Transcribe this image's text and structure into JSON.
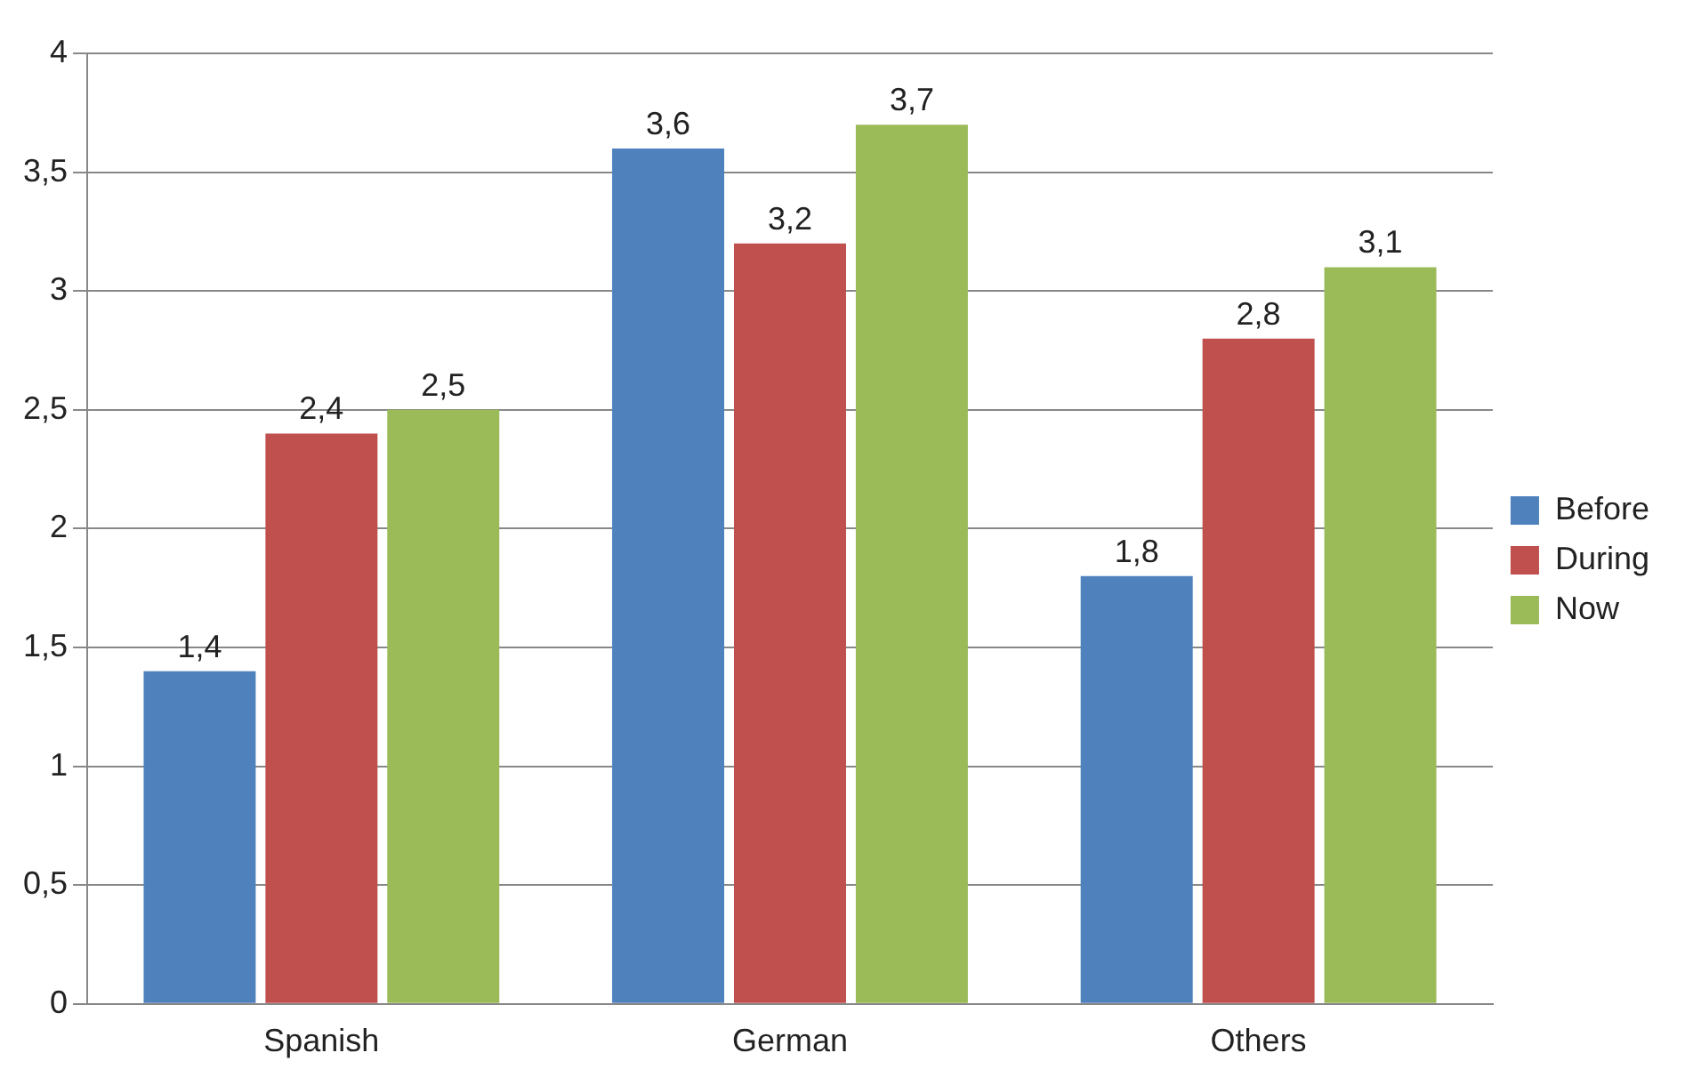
{
  "chart_data": {
    "type": "bar",
    "categories": [
      "Spanish",
      "German",
      "Others"
    ],
    "series": [
      {
        "name": "Before",
        "color": "#4f81bd",
        "values": [
          1.4,
          3.6,
          1.8
        ],
        "value_labels": [
          "1,4",
          "3,6",
          "1,8"
        ]
      },
      {
        "name": "During",
        "color": "#c0504d",
        "values": [
          2.4,
          3.2,
          2.8
        ],
        "value_labels": [
          "2,4",
          "3,2",
          "2,8"
        ]
      },
      {
        "name": "Now",
        "color": "#9bbb59",
        "values": [
          2.5,
          3.7,
          3.1
        ],
        "value_labels": [
          "2,5",
          "3,7",
          "3,1"
        ]
      }
    ],
    "ylim": [
      0,
      4
    ],
    "yticks": [
      0,
      {
        "value": 0.5,
        "label": "0,5"
      },
      1,
      {
        "value": 1.5,
        "label": "1,5"
      },
      2,
      {
        "value": 2.5,
        "label": "2,5"
      },
      3,
      {
        "value": 3.5,
        "label": "3,5"
      },
      4
    ],
    "grid": "y",
    "legend": "right"
  }
}
